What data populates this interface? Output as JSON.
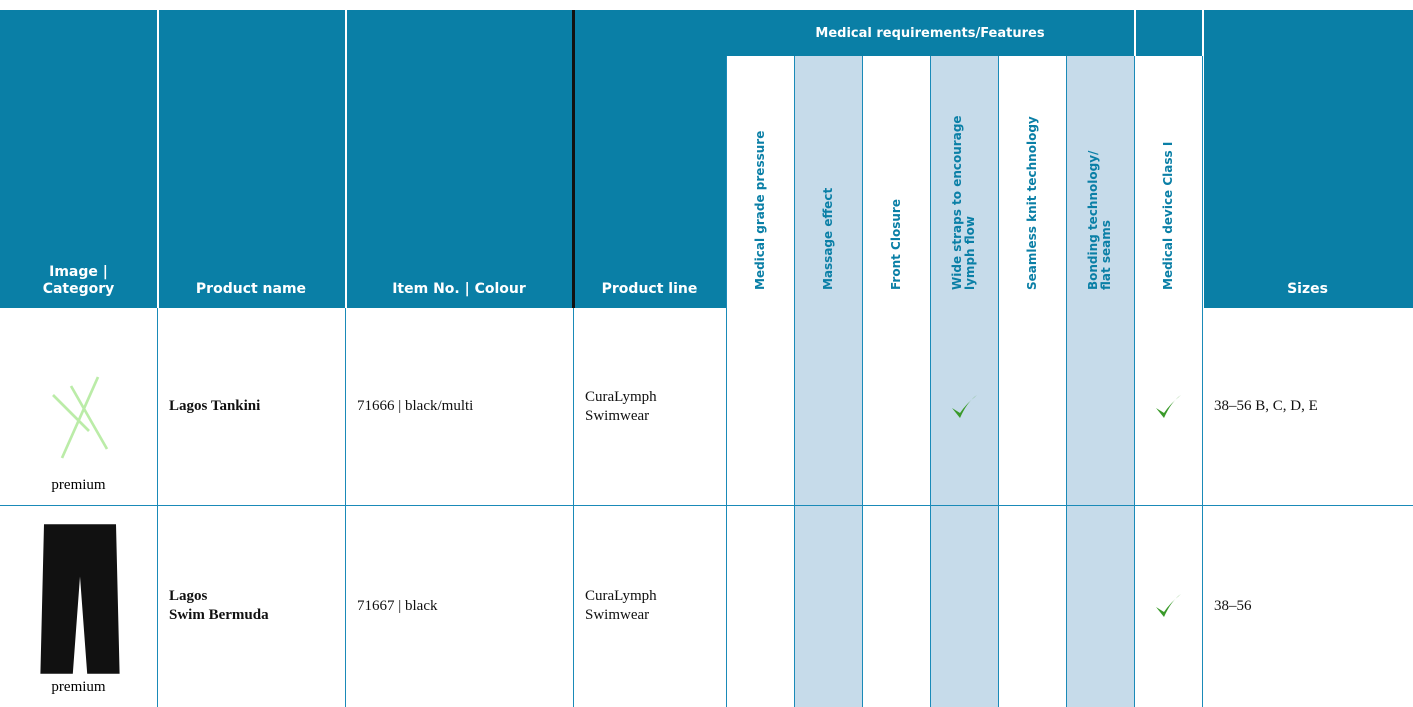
{
  "header": {
    "columns": [
      "Image |\nCategory",
      "Product name",
      "Item No. | Colour",
      "Product line"
    ],
    "group": "Medical requirements/Features",
    "features": [
      "Medical grade pressure",
      "Massage effect",
      "Front Closure",
      "Wide straps to encourage\nlymph flow",
      "Seamless knit technology",
      "Bonding technology/\nflat seams"
    ],
    "device": "Medical device Class I",
    "sizes": "Sizes"
  },
  "rows": [
    {
      "category": "premium",
      "name": "Lagos Tankini",
      "item": "71666 | black/multi",
      "line": "CuraLymph\nSwimwear",
      "checks": [
        false,
        false,
        false,
        true,
        false,
        false,
        true
      ],
      "sizes": "38–56 B, C, D, E"
    },
    {
      "category": "premium",
      "name": "Lagos\nSwim Bermuda",
      "item": "71667 | black",
      "line": "CuraLymph\nSwimwear",
      "checks": [
        false,
        false,
        false,
        false,
        false,
        false,
        true
      ],
      "sizes": "38–56"
    }
  ]
}
